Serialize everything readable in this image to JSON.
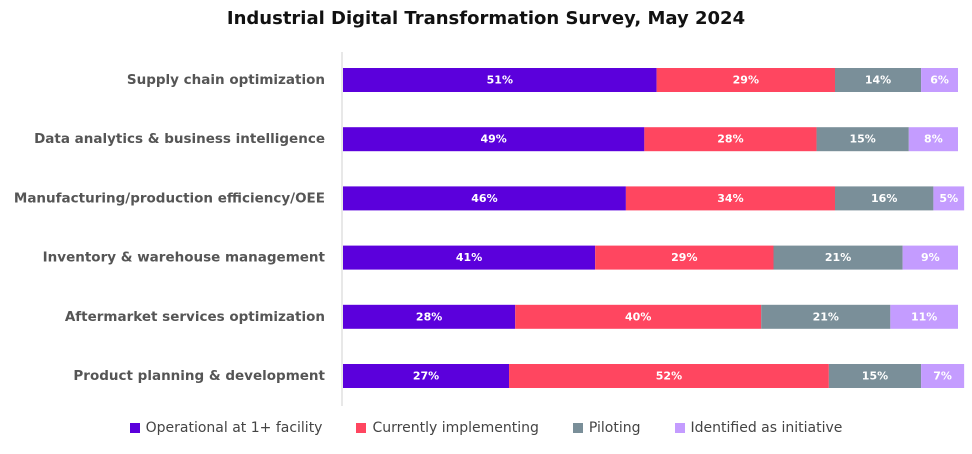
{
  "chart_data": {
    "type": "bar",
    "orientation": "horizontal",
    "stacked": true,
    "title": "Industrial Digital Transformation Survey, May 2024",
    "categories": [
      "Supply chain optimization",
      "Data analytics & business intelligence",
      "Manufacturing/production efficiency/OEE",
      "Inventory & warehouse management",
      "Aftermarket services optimization",
      "Product planning & development"
    ],
    "series": [
      {
        "name": "Operational at 1+ facility",
        "color": "#5b00dc",
        "values": [
          51,
          49,
          46,
          41,
          28,
          27
        ]
      },
      {
        "name": "Currently implementing",
        "color": "#ff4660",
        "values": [
          29,
          28,
          34,
          29,
          40,
          52
        ]
      },
      {
        "name": "Piloting",
        "color": "#7a8f99",
        "values": [
          14,
          15,
          16,
          21,
          21,
          15
        ]
      },
      {
        "name": "Identified as initiative",
        "color": "#c49cff",
        "values": [
          6,
          8,
          5,
          9,
          11,
          7
        ]
      }
    ],
    "value_suffix": "%",
    "legend_position": "bottom",
    "grid": false
  }
}
